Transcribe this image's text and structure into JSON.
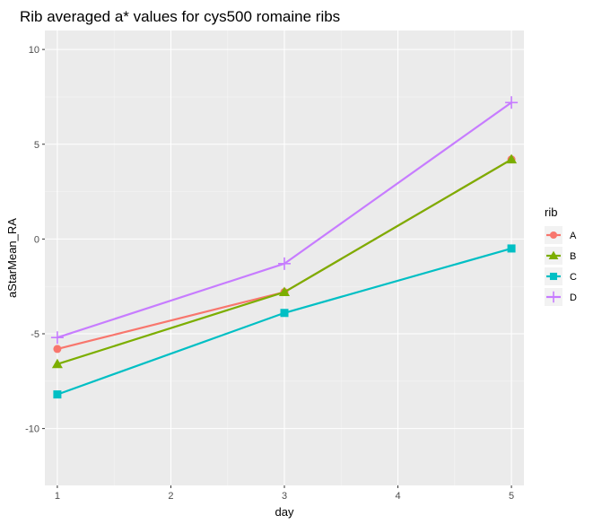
{
  "chart_data": {
    "type": "line",
    "title": "Rib averaged a* values for cys500 romaine ribs",
    "xlabel": "day",
    "ylabel": "aStarMean_RA",
    "x": [
      1,
      3,
      5
    ],
    "xticks": [
      1,
      2,
      3,
      4,
      5
    ],
    "yticks": [
      -10,
      -5,
      0,
      5,
      10
    ],
    "xlim": [
      0.89,
      5.11
    ],
    "ylim": [
      -13,
      11
    ],
    "grid": true,
    "legend": {
      "title": "rib",
      "position": "right"
    },
    "series": [
      {
        "name": "A",
        "values": [
          -5.8,
          -2.8,
          4.2
        ],
        "color": "#F8766D",
        "marker": "circle"
      },
      {
        "name": "B",
        "values": [
          -6.6,
          -2.8,
          4.2
        ],
        "color": "#7CAE00",
        "marker": "triangle"
      },
      {
        "name": "C",
        "values": [
          -8.2,
          -3.9,
          -0.5
        ],
        "color": "#00BFC4",
        "marker": "square"
      },
      {
        "name": "D",
        "values": [
          -5.2,
          -1.3,
          7.2
        ],
        "color": "#C77CFF",
        "marker": "plus"
      }
    ]
  }
}
